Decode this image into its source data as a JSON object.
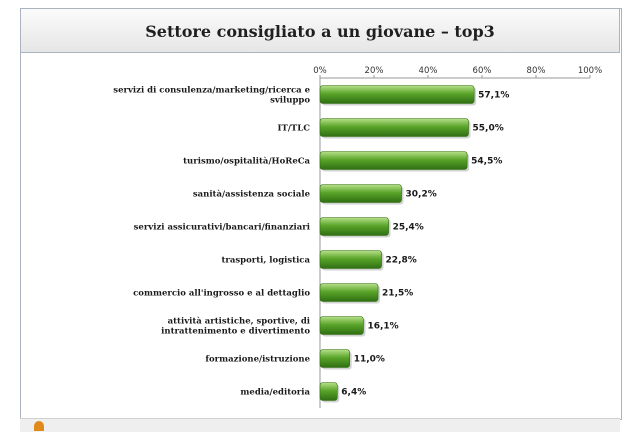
{
  "chart_data": {
    "type": "bar",
    "orientation": "horizontal",
    "title": "Settore consigliato a un giovane – top3",
    "categories": [
      "servizi di consulenza/marketing/ricerca e sviluppo",
      "IT/TLC",
      "turismo/ospitalità/HoReCa",
      "sanità/assistenza sociale",
      "servizi assicurativi/bancari/finanziari",
      "trasporti, logistica",
      "commercio all'ingrosso e al dettaglio",
      "attività artistiche, sportive, di intrattenimento e divertimento",
      "formazione/istruzione",
      "media/editoria"
    ],
    "values": [
      57.1,
      55.0,
      54.5,
      30.2,
      25.4,
      22.8,
      21.5,
      16.1,
      11.0,
      6.4
    ],
    "value_labels": [
      "57,1%",
      "55,0%",
      "54,5%",
      "30,2%",
      "25,4%",
      "22,8%",
      "21,5%",
      "16,1%",
      "11,0%",
      "6,4%"
    ],
    "xlim": [
      0,
      100
    ],
    "x_ticks": [
      "0%",
      "20%",
      "40%",
      "60%",
      "80%",
      "100%"
    ],
    "axis_position": "top",
    "grid": false,
    "bar_color": "#5aa52a",
    "bar_color_light": "#b8e08a",
    "bar_color_dark": "#2f6f12"
  }
}
